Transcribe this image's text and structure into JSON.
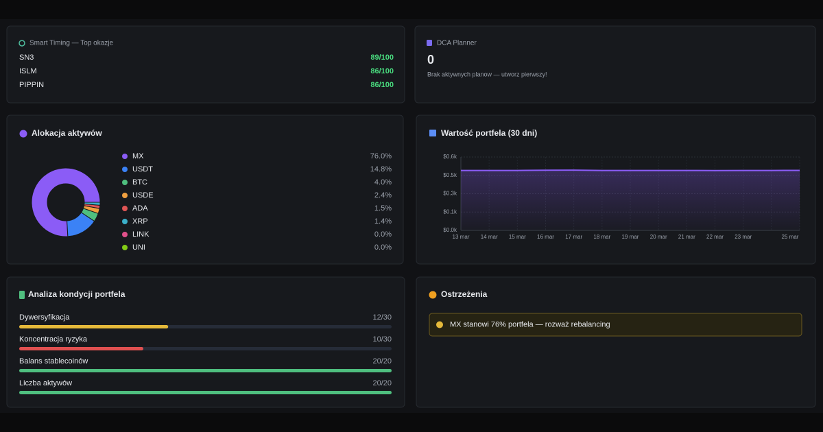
{
  "smart_timing": {
    "title": "Smart Timing — Top okazje",
    "rows": [
      {
        "symbol": "SN3",
        "score": "89/100"
      },
      {
        "symbol": "ISLM",
        "score": "86/100"
      },
      {
        "symbol": "PIPPIN",
        "score": "86/100"
      }
    ]
  },
  "dca": {
    "title": "DCA Planner",
    "count": 0,
    "note": "Brak aktywnych planow — utworz pierwszy!"
  },
  "chart_data": [
    {
      "type": "pie",
      "title": "Alokacja aktywów",
      "categories": [
        "MX",
        "USDT",
        "BTC",
        "USDE",
        "ADA",
        "XRP",
        "LINK",
        "UNI"
      ],
      "values": [
        76.0,
        14.8,
        4.0,
        2.4,
        1.5,
        1.4,
        0.0,
        0.0
      ],
      "value_labels": [
        "76.0%",
        "14.8%",
        "4.0%",
        "2.4%",
        "1.5%",
        "1.4%",
        "0.0%",
        "0.0%"
      ],
      "colors": [
        "#8b5cf6",
        "#3b82f6",
        "#4fbf7f",
        "#f0a040",
        "#e05555",
        "#3bb0c9",
        "#e0508a",
        "#84cc16"
      ]
    },
    {
      "type": "line",
      "title": "Wartość portfela (30 dni)",
      "categories": [
        "13 mar",
        "14 mar",
        "15 mar",
        "16 mar",
        "17 mar",
        "18 mar",
        "19 mar",
        "20 mar",
        "21 mar",
        "22 mar",
        "23 mar",
        null,
        "25 mar"
      ],
      "values": [
        0.49,
        0.49,
        0.49,
        0.492,
        0.493,
        0.49,
        0.49,
        0.49,
        0.49,
        0.489,
        0.49,
        0.49,
        0.491
      ],
      "color": "#8b5cf6",
      "ylim": [
        0,
        0.6
      ],
      "yticks": [
        {
          "value": 0,
          "label": "$0.0k"
        },
        {
          "value": 0.15,
          "label": "$0.1k"
        },
        {
          "value": 0.3,
          "label": "$0.3k"
        },
        {
          "value": 0.45,
          "label": "$0.5k"
        },
        {
          "value": 0.6,
          "label": "$0.6k"
        }
      ],
      "grid": true
    }
  ],
  "health": {
    "title": "Analiza kondycji portfela",
    "items": [
      {
        "label": "Dywersyfikacja",
        "value": 12,
        "max": 30,
        "score": "12/30",
        "color": "#e5b93a"
      },
      {
        "label": "Koncentracja ryzyka",
        "value": 10,
        "max": 30,
        "score": "10/30",
        "color": "#e05050"
      },
      {
        "label": "Balans stablecoinów",
        "value": 20,
        "max": 20,
        "score": "20/20",
        "color": "#4fbf7f"
      },
      {
        "label": "Liczba aktywów",
        "value": 20,
        "max": 20,
        "score": "20/20",
        "color": "#4fbf7f"
      }
    ]
  },
  "warnings": {
    "title": "Ostrzeżenia",
    "items": [
      "MX stanowi 76% portfela — rozważ rebalancing"
    ]
  }
}
